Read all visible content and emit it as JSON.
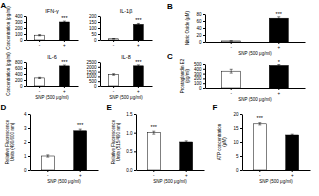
{
  "chart_data": [
    {
      "type": "bar",
      "title": "IFN-γ",
      "categories": [
        "-",
        "+"
      ],
      "values": [
        80,
        300
      ],
      "errors": [
        10,
        15
      ],
      "colors": [
        "white",
        "black"
      ],
      "ylim": [
        0,
        400
      ],
      "yticks": [
        0,
        100,
        200,
        300,
        400
      ],
      "ylabel": "Concentration (pg/ml)",
      "annotations": [
        {
          "text": "A"
        },
        {
          "text": "***",
          "category": "+"
        }
      ]
    },
    {
      "type": "bar",
      "title": "IL-1β",
      "categories": [
        "-",
        "+"
      ],
      "values": [
        10,
        130
      ],
      "errors": [
        2,
        8
      ],
      "colors": [
        "white",
        "black"
      ],
      "ylim": [
        0,
        200
      ],
      "yticks": [
        0,
        50,
        100,
        150,
        200
      ],
      "annotations": [
        {
          "text": "***",
          "category": "+"
        }
      ]
    },
    {
      "type": "bar",
      "title": "IL-6",
      "categories": [
        "-",
        "+"
      ],
      "values": [
        270,
        670
      ],
      "errors": [
        20,
        30
      ],
      "colors": [
        "white",
        "black"
      ],
      "ylim": [
        0,
        800
      ],
      "yticks": [
        0,
        200,
        400,
        600,
        800
      ],
      "ylabel": "Concentration (pg/ml)",
      "xlabel": "SNP (500 μg/ml)",
      "annotations": [
        {
          "text": "***",
          "category": "+"
        }
      ]
    },
    {
      "type": "bar",
      "title": "IL-8",
      "categories": [
        "-",
        "+"
      ],
      "values": [
        1200,
        2100
      ],
      "errors": [
        80,
        100
      ],
      "colors": [
        "white",
        "black"
      ],
      "ylim": [
        0,
        2500
      ],
      "yticks": [
        0,
        500,
        1000,
        1500,
        2000,
        2500
      ],
      "xlabel": "SNP (500 μg/ml)",
      "annotations": [
        {
          "text": "***",
          "category": "+"
        }
      ]
    },
    {
      "type": "bar",
      "categories": [
        "-",
        "+"
      ],
      "values": [
        3,
        68
      ],
      "errors": [
        0.5,
        4
      ],
      "colors": [
        "white",
        "black"
      ],
      "ylim": [
        0,
        80
      ],
      "yticks": [
        0,
        20,
        40,
        60,
        80
      ],
      "ylabel": "Nitric Oxide (μM)",
      "xlabel": "SNP (500 μg/ml)",
      "annotations": [
        {
          "text": "B"
        },
        {
          "text": "***",
          "category": "+"
        }
      ]
    },
    {
      "type": "bar",
      "categories": [
        "-",
        "+"
      ],
      "values": [
        350,
        470
      ],
      "errors": [
        40,
        20
      ],
      "colors": [
        "white",
        "black"
      ],
      "ylim": [
        0,
        500
      ],
      "yticks": [
        0,
        100,
        200,
        300,
        400,
        500
      ],
      "ylabel": "Prostaglandin E2\n(pg/ml)",
      "xlabel": "SNP (500 μg/ml)",
      "annotations": [
        {
          "text": "C"
        },
        {
          "text": "*",
          "category": "+"
        }
      ]
    },
    {
      "type": "bar",
      "categories": [
        "-",
        "+"
      ],
      "values": [
        1.0,
        2.8
      ],
      "errors": [
        0.08,
        0.12
      ],
      "colors": [
        "white",
        "black"
      ],
      "ylim": [
        0,
        4
      ],
      "yticks": [
        0,
        1,
        2,
        3,
        4
      ],
      "ylabel": "Relative Fluorescence\nUnits (490/600 nm)",
      "xlabel": "SNP (500 μg/ml)",
      "annotations": [
        {
          "text": "D"
        },
        {
          "text": "***",
          "category": "+"
        }
      ]
    },
    {
      "type": "bar",
      "categories": [
        "-",
        "+"
      ],
      "values": [
        1.0,
        0.75
      ],
      "errors": [
        0.04,
        0.03
      ],
      "colors": [
        "white",
        "black"
      ],
      "ylim": [
        0,
        1.5
      ],
      "yticks": [
        {
          "value": 0.0,
          "label": "0.0"
        },
        0.5,
        {
          "value": 1.0,
          "label": "1.0"
        },
        1.5
      ],
      "ylabel": "Relative Fluorescence\nUnits (515/490 nm)",
      "xlabel": "SNP (500 μg/ml)",
      "annotations": [
        {
          "text": "E"
        },
        {
          "text": "***",
          "category": "-"
        }
      ]
    },
    {
      "type": "bar",
      "categories": [
        "-",
        "+"
      ],
      "values": [
        16.5,
        12.5
      ],
      "errors": [
        0.4,
        0.3
      ],
      "colors": [
        "white",
        "black"
      ],
      "ylim": [
        0,
        20
      ],
      "yticks": [
        0,
        5,
        10,
        15,
        20
      ],
      "ylabel": "ATP concentration\n(μM)",
      "xlabel": "SNP (500 μg/ml)",
      "annotations": [
        {
          "text": "F"
        },
        {
          "text": "***",
          "category": "-"
        }
      ]
    }
  ]
}
